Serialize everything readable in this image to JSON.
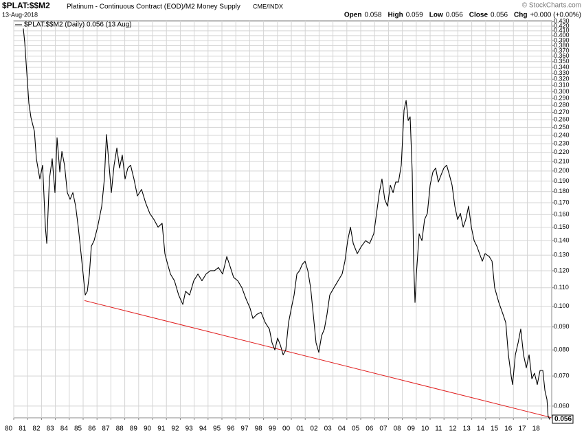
{
  "chart_data": {
    "type": "line",
    "symbol": "$PLAT:$$M2",
    "title": "Platinum - Continuous Contract (EOD)/M2 Money Supply",
    "exchange": "CME/INDX",
    "date": "13-Aug-2018",
    "brand": "© StockCharts.com",
    "quote": [
      {
        "label": "Open",
        "value": "0.058"
      },
      {
        "label": "High",
        "value": "0.059"
      },
      {
        "label": "Low",
        "value": "0.056"
      },
      {
        "label": "Close",
        "value": "0.056"
      },
      {
        "label": "Chg",
        "value": "+0.000 (+0.00%)"
      }
    ],
    "log_scale": true,
    "grid": true,
    "xlim": [
      1980,
      2018.76
    ],
    "ylim": [
      0.0565,
      0.432
    ],
    "xticks": [
      {
        "value": 1980,
        "label": "80"
      },
      {
        "value": 1981,
        "label": "81"
      },
      {
        "value": 1982,
        "label": "82"
      },
      {
        "value": 1983,
        "label": "83"
      },
      {
        "value": 1984,
        "label": "84"
      },
      {
        "value": 1985,
        "label": "85"
      },
      {
        "value": 1986,
        "label": "86"
      },
      {
        "value": 1987,
        "label": "87"
      },
      {
        "value": 1988,
        "label": "88"
      },
      {
        "value": 1989,
        "label": "89"
      },
      {
        "value": 1990,
        "label": "90"
      },
      {
        "value": 1991,
        "label": "91"
      },
      {
        "value": 1992,
        "label": "92"
      },
      {
        "value": 1993,
        "label": "93"
      },
      {
        "value": 1994,
        "label": "94"
      },
      {
        "value": 1995,
        "label": "95"
      },
      {
        "value": 1996,
        "label": "96"
      },
      {
        "value": 1997,
        "label": "97"
      },
      {
        "value": 1998,
        "label": "98"
      },
      {
        "value": 1999,
        "label": "99"
      },
      {
        "value": 2000,
        "label": "00"
      },
      {
        "value": 2001,
        "label": "01"
      },
      {
        "value": 2002,
        "label": "02"
      },
      {
        "value": 2003,
        "label": "03"
      },
      {
        "value": 2004,
        "label": "04"
      },
      {
        "value": 2005,
        "label": "05"
      },
      {
        "value": 2006,
        "label": "06"
      },
      {
        "value": 2007,
        "label": "07"
      },
      {
        "value": 2008,
        "label": "08"
      },
      {
        "value": 2009,
        "label": "09"
      },
      {
        "value": 2010,
        "label": "10"
      },
      {
        "value": 2011,
        "label": "11"
      },
      {
        "value": 2012,
        "label": "12"
      },
      {
        "value": 2013,
        "label": "13"
      },
      {
        "value": 2014,
        "label": "14"
      },
      {
        "value": 2015,
        "label": "15"
      },
      {
        "value": 2016,
        "label": "16"
      },
      {
        "value": 2017,
        "label": "17"
      },
      {
        "value": 2018,
        "label": "18"
      }
    ],
    "yticks": [
      {
        "value": 0.06,
        "label": "0.060"
      },
      {
        "value": 0.07,
        "label": "0.070"
      },
      {
        "value": 0.08,
        "label": "0.080"
      },
      {
        "value": 0.09,
        "label": "0.090"
      },
      {
        "value": 0.1,
        "label": "0.100"
      },
      {
        "value": 0.11,
        "label": "0.110"
      },
      {
        "value": 0.12,
        "label": "0.120"
      },
      {
        "value": 0.13,
        "label": "0.130"
      },
      {
        "value": 0.14,
        "label": "0.140"
      },
      {
        "value": 0.15,
        "label": "0.150"
      },
      {
        "value": 0.16,
        "label": "0.160"
      },
      {
        "value": 0.17,
        "label": "0.170"
      },
      {
        "value": 0.18,
        "label": "0.180"
      },
      {
        "value": 0.19,
        "label": "0.190"
      },
      {
        "value": 0.2,
        "label": "0.200"
      },
      {
        "value": 0.21,
        "label": "0.210"
      },
      {
        "value": 0.22,
        "label": "0.220"
      },
      {
        "value": 0.23,
        "label": "0.230"
      },
      {
        "value": 0.24,
        "label": "0.240"
      },
      {
        "value": 0.25,
        "label": "0.250"
      },
      {
        "value": 0.26,
        "label": "0.260"
      },
      {
        "value": 0.27,
        "label": "0.270"
      },
      {
        "value": 0.28,
        "label": "0.280"
      },
      {
        "value": 0.29,
        "label": "0.290"
      },
      {
        "value": 0.3,
        "label": "0.300"
      },
      {
        "value": 0.31,
        "label": "0.310"
      },
      {
        "value": 0.32,
        "label": "0.320"
      },
      {
        "value": 0.33,
        "label": "0.330"
      },
      {
        "value": 0.34,
        "label": "0.340"
      },
      {
        "value": 0.35,
        "label": "0.350"
      },
      {
        "value": 0.36,
        "label": "0.360"
      },
      {
        "value": 0.37,
        "label": "0.370"
      },
      {
        "value": 0.38,
        "label": "0.380"
      },
      {
        "value": 0.39,
        "label": "0.390"
      },
      {
        "value": 0.4,
        "label": "0.400"
      },
      {
        "value": 0.41,
        "label": "0.410"
      },
      {
        "value": 0.42,
        "label": "0.420"
      },
      {
        "value": 0.43,
        "label": "0.430"
      }
    ],
    "x": [
      1980.69,
      1980.79,
      1980.99,
      1981.09,
      1981.24,
      1981.49,
      1981.63,
      1981.88,
      1982.08,
      1982.28,
      1982.38,
      1982.57,
      1982.77,
      1982.97,
      1983.12,
      1983.32,
      1983.47,
      1983.66,
      1983.86,
      1984.06,
      1984.26,
      1984.46,
      1984.65,
      1984.85,
      1985.0,
      1985.15,
      1985.3,
      1985.45,
      1985.59,
      1985.79,
      1986.04,
      1986.34,
      1986.53,
      1986.68,
      1986.83,
      1987.03,
      1987.23,
      1987.43,
      1987.62,
      1987.82,
      1988.02,
      1988.22,
      1988.42,
      1988.66,
      1988.91,
      1989.21,
      1989.5,
      1989.8,
      1990.1,
      1990.4,
      1990.69,
      1990.89,
      1991.09,
      1991.29,
      1991.58,
      1991.88,
      1992.18,
      1992.38,
      1992.67,
      1992.97,
      1993.27,
      1993.56,
      1993.86,
      1994.16,
      1994.46,
      1994.75,
      1995.05,
      1995.35,
      1995.54,
      1995.84,
      1996.14,
      1996.44,
      1996.73,
      1997.03,
      1997.23,
      1997.52,
      1997.82,
      1998.12,
      1998.42,
      1998.61,
      1998.81,
      1999.01,
      1999.21,
      1999.41,
      1999.6,
      1999.8,
      2000.0,
      2000.2,
      2000.4,
      2000.59,
      2000.79,
      2000.99,
      2001.19,
      2001.39,
      2001.58,
      2001.78,
      2001.98,
      2002.18,
      2002.38,
      2002.57,
      2002.77,
      2003.07,
      2003.37,
      2003.66,
      2003.86,
      2004.06,
      2004.26,
      2004.46,
      2004.75,
      2005.05,
      2005.35,
      2005.64,
      2005.94,
      2006.14,
      2006.34,
      2006.53,
      2006.73,
      2006.93,
      2007.13,
      2007.33,
      2007.52,
      2007.72,
      2007.92,
      2008.12,
      2008.27,
      2008.42,
      2008.56,
      2008.71,
      2008.81,
      2008.91,
      2009.01,
      2009.21,
      2009.41,
      2009.6,
      2009.8,
      2010.0,
      2010.2,
      2010.4,
      2010.59,
      2010.79,
      2010.99,
      2011.19,
      2011.39,
      2011.58,
      2011.78,
      2011.98,
      2012.18,
      2012.38,
      2012.57,
      2012.77,
      2012.97,
      2013.17,
      2013.37,
      2013.56,
      2013.76,
      2013.96,
      2014.26,
      2014.46,
      2014.65,
      2014.95,
      2015.25,
      2015.45,
      2015.64,
      2015.84,
      2015.94,
      2016.14,
      2016.34,
      2016.53,
      2016.73,
      2016.93,
      2017.13,
      2017.33,
      2017.52,
      2017.72,
      2017.92,
      2018.12,
      2018.27,
      2018.42,
      2018.5,
      2018.62
    ],
    "series": [
      {
        "name": "$PLAT:$$M2 (Daily) 0.056 (13 Aug)",
        "color": "#000000",
        "values": [
          0.415,
          0.387,
          0.314,
          0.283,
          0.263,
          0.245,
          0.213,
          0.192,
          0.206,
          0.15,
          0.138,
          0.192,
          0.213,
          0.179,
          0.237,
          0.199,
          0.221,
          0.206,
          0.179,
          0.173,
          0.179,
          0.167,
          0.15,
          0.131,
          0.118,
          0.106,
          0.108,
          0.118,
          0.136,
          0.14,
          0.15,
          0.167,
          0.192,
          0.241,
          0.213,
          0.179,
          0.206,
          0.225,
          0.203,
          0.217,
          0.192,
          0.203,
          0.206,
          0.192,
          0.176,
          0.182,
          0.17,
          0.161,
          0.156,
          0.15,
          0.153,
          0.131,
          0.124,
          0.118,
          0.114,
          0.106,
          0.101,
          0.108,
          0.106,
          0.114,
          0.118,
          0.114,
          0.118,
          0.12,
          0.12,
          0.122,
          0.118,
          0.129,
          0.124,
          0.116,
          0.114,
          0.11,
          0.104,
          0.099,
          0.094,
          0.096,
          0.097,
          0.092,
          0.089,
          0.083,
          0.08,
          0.085,
          0.082,
          0.078,
          0.08,
          0.092,
          0.099,
          0.106,
          0.118,
          0.12,
          0.124,
          0.126,
          0.12,
          0.11,
          0.096,
          0.083,
          0.079,
          0.086,
          0.089,
          0.096,
          0.106,
          0.11,
          0.114,
          0.118,
          0.126,
          0.14,
          0.15,
          0.138,
          0.131,
          0.136,
          0.14,
          0.138,
          0.145,
          0.161,
          0.179,
          0.192,
          0.173,
          0.167,
          0.186,
          0.179,
          0.189,
          0.189,
          0.206,
          0.273,
          0.287,
          0.259,
          0.264,
          0.199,
          0.126,
          0.102,
          0.118,
          0.145,
          0.14,
          0.156,
          0.161,
          0.186,
          0.199,
          0.203,
          0.189,
          0.196,
          0.203,
          0.206,
          0.196,
          0.186,
          0.167,
          0.156,
          0.161,
          0.15,
          0.156,
          0.167,
          0.15,
          0.14,
          0.136,
          0.131,
          0.126,
          0.131,
          0.129,
          0.126,
          0.11,
          0.102,
          0.096,
          0.092,
          0.078,
          0.07,
          0.067,
          0.078,
          0.083,
          0.089,
          0.078,
          0.073,
          0.078,
          0.069,
          0.071,
          0.067,
          0.072,
          0.072,
          0.065,
          0.062,
          0.057,
          0.056
        ]
      }
    ],
    "last_value_label": "0.056",
    "trendline": {
      "x": [
        1985.1,
        2018.7
      ],
      "values": [
        0.103,
        0.0566
      ],
      "color": "#e02020"
    }
  }
}
